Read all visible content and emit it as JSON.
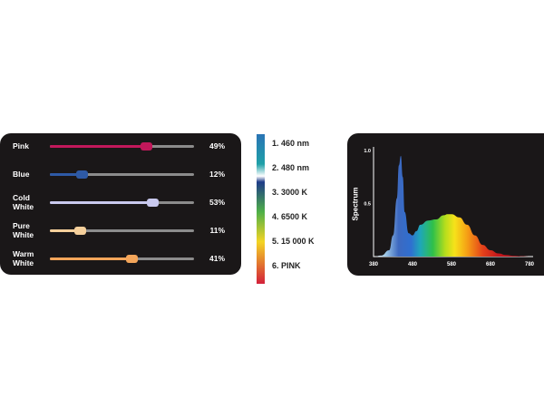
{
  "sliders": [
    {
      "label": "Pink",
      "value": 49,
      "value_text": "49%",
      "color": "#c2185b"
    },
    {
      "label": "Blue",
      "value": 12,
      "value_text": "12%",
      "color": "#2e5aa6"
    },
    {
      "label": "Cold\nWhite",
      "value": 53,
      "value_text": "53%",
      "color": "#c9c9ee"
    },
    {
      "label": "Pure\nWhite",
      "value": 11,
      "value_text": "11%",
      "color": "#f5cf9b"
    },
    {
      "label": "Warm\nWhite",
      "value": 41,
      "value_text": "41%",
      "color": "#f4a55a"
    }
  ],
  "legend": {
    "items": [
      {
        "label": "1.  460 nm",
        "color": "#2a74b5"
      },
      {
        "label": "2.  480 nm",
        "color": "#1fa0a8"
      },
      {
        "label": "3.  3000 K",
        "color": "#1e3c88"
      },
      {
        "label": "4.  6500 K",
        "color": "#4fb048"
      },
      {
        "label": "5.  15 000 K",
        "color": "#f3d424"
      },
      {
        "label": "6.  PINK",
        "color": "#d3203a"
      }
    ]
  },
  "chart_data": {
    "type": "area",
    "title": "",
    "ylabel": "Spectrum",
    "xlabel": "",
    "xlim": [
      380,
      780
    ],
    "ylim": [
      0,
      1.0
    ],
    "x_ticks": [
      380,
      480,
      580,
      680,
      780
    ],
    "x_tick_labels": [
      "380",
      "480",
      "580",
      "680",
      "780"
    ],
    "y_ticks": [
      0.5,
      1.0
    ],
    "y_tick_labels": [
      "0.5",
      "1.0"
    ],
    "fill": "visible-spectrum-gradient",
    "series": [
      {
        "x": [
          380,
          400,
          420,
          430,
          440,
          445,
          450,
          455,
          460,
          470,
          480,
          490,
          500,
          520,
          540,
          560,
          570,
          580,
          600,
          620,
          640,
          660,
          680,
          700,
          720,
          740,
          760,
          780
        ],
        "y": [
          0,
          0.01,
          0.06,
          0.2,
          0.55,
          0.86,
          0.95,
          0.75,
          0.42,
          0.22,
          0.2,
          0.24,
          0.3,
          0.34,
          0.35,
          0.39,
          0.4,
          0.4,
          0.37,
          0.3,
          0.2,
          0.11,
          0.06,
          0.03,
          0.015,
          0.007,
          0.003,
          0
        ]
      }
    ]
  }
}
